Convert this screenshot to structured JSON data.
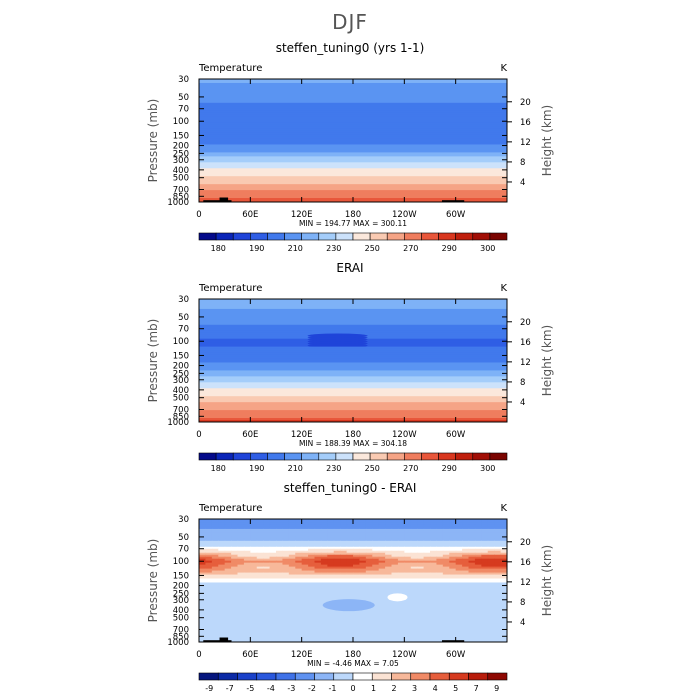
{
  "figure_title": "DJF",
  "chart_data": [
    {
      "type": "heatmap",
      "title": "steffen_tuning0 (yrs 1-1)",
      "left_label": "Temperature",
      "right_label": "K",
      "ylabel": "Pressure (mb)",
      "ylabel_right": "Height (km)",
      "x_ticks": [
        "0",
        "60E",
        "120E",
        "180",
        "120W",
        "60W"
      ],
      "x_tick_lon": [
        0,
        60,
        120,
        180,
        240,
        300
      ],
      "x_range": [
        0,
        360
      ],
      "y_ticks": [
        "30",
        "50",
        "70",
        "100",
        "150",
        "200",
        "250",
        "300",
        "400",
        "500",
        "700",
        "850",
        "1000"
      ],
      "y_tick_p": [
        30,
        50,
        70,
        100,
        150,
        200,
        250,
        300,
        400,
        500,
        700,
        850,
        1000
      ],
      "p_range": [
        1000,
        30
      ],
      "height_ticks": [
        "20",
        "16",
        "12",
        "8",
        "4"
      ],
      "height_km": [
        20,
        16,
        12,
        8,
        4
      ],
      "stats_text": "MIN = 194.77   MAX = 300.11",
      "cbar_labels": [
        "180",
        "190",
        "210",
        "230",
        "250",
        "270",
        "290",
        "300"
      ],
      "cbar_colors": [
        "#040a8a",
        "#0a25b8",
        "#1f44d9",
        "#2f5ee5",
        "#4179ec",
        "#5a94f2",
        "#7eb2f7",
        "#a4cdfa",
        "#cce2fb",
        "#fbe8dc",
        "#f9cab2",
        "#f5a486",
        "#ef7d5e",
        "#e8563a",
        "#d9371f",
        "#c01f0d",
        "#a10e05",
        "#7a0400"
      ],
      "field": "abs",
      "terrain": true,
      "profile_p": [
        30,
        50,
        70,
        100,
        150,
        200,
        250,
        300,
        400,
        500,
        700,
        850,
        1000
      ],
      "profile_val": [
        222,
        213,
        206,
        201,
        203,
        211,
        223,
        236,
        252,
        262,
        278,
        287,
        296
      ]
    },
    {
      "type": "heatmap",
      "title": "ERAI",
      "left_label": "Temperature",
      "right_label": "K",
      "ylabel": "Pressure (mb)",
      "ylabel_right": "Height (km)",
      "x_ticks": [
        "0",
        "60E",
        "120E",
        "180",
        "120W",
        "60W"
      ],
      "x_tick_lon": [
        0,
        60,
        120,
        180,
        240,
        300
      ],
      "x_range": [
        0,
        360
      ],
      "y_ticks": [
        "30",
        "50",
        "70",
        "100",
        "150",
        "200",
        "250",
        "300",
        "400",
        "500",
        "700",
        "850",
        "1000"
      ],
      "y_tick_p": [
        30,
        50,
        70,
        100,
        150,
        200,
        250,
        300,
        400,
        500,
        700,
        850,
        1000
      ],
      "p_range": [
        1000,
        30
      ],
      "height_ticks": [
        "20",
        "16",
        "12",
        "8",
        "4"
      ],
      "height_km": [
        20,
        16,
        12,
        8,
        4
      ],
      "stats_text": "MIN = 188.39   MAX = 304.18",
      "cbar_labels": [
        "180",
        "190",
        "210",
        "230",
        "250",
        "270",
        "290",
        "300"
      ],
      "cbar_colors": [
        "#040a8a",
        "#0a25b8",
        "#1f44d9",
        "#2f5ee5",
        "#4179ec",
        "#5a94f2",
        "#7eb2f7",
        "#a4cdfa",
        "#cce2fb",
        "#fbe8dc",
        "#f9cab2",
        "#f5a486",
        "#ef7d5e",
        "#e8563a",
        "#d9371f",
        "#c01f0d",
        "#a10e05",
        "#7a0400"
      ],
      "field": "abs",
      "terrain": false,
      "profile_p": [
        30,
        50,
        70,
        100,
        150,
        200,
        250,
        300,
        400,
        500,
        700,
        850,
        1000
      ],
      "profile_val": [
        224,
        216,
        207,
        198,
        203,
        212,
        224,
        237,
        253,
        263,
        279,
        288,
        298
      ]
    },
    {
      "type": "heatmap",
      "title": "steffen_tuning0 - ERAI",
      "left_label": "Temperature",
      "right_label": "K",
      "ylabel": "Pressure (mb)",
      "ylabel_right": "Height (km)",
      "x_ticks": [
        "0",
        "60E",
        "120E",
        "180",
        "120W",
        "60W"
      ],
      "x_tick_lon": [
        0,
        60,
        120,
        180,
        240,
        300
      ],
      "x_range": [
        0,
        360
      ],
      "y_ticks": [
        "30",
        "50",
        "70",
        "100",
        "150",
        "200",
        "250",
        "300",
        "400",
        "500",
        "700",
        "850",
        "1000"
      ],
      "y_tick_p": [
        30,
        50,
        70,
        100,
        150,
        200,
        250,
        300,
        400,
        500,
        700,
        850,
        1000
      ],
      "p_range": [
        1000,
        30
      ],
      "height_ticks": [
        "20",
        "16",
        "12",
        "8",
        "4"
      ],
      "height_km": [
        20,
        16,
        12,
        8,
        4
      ],
      "stats_text": "MIN = -4.46   MAX = 7.05",
      "cbar_labels": [
        "-9",
        "-7",
        "-5",
        "-4",
        "-3",
        "-2",
        "-1",
        "0",
        "1",
        "2",
        "3",
        "4",
        "5",
        "7",
        "9"
      ],
      "cbar_colors": [
        "#06167e",
        "#0b2aa6",
        "#1a41c9",
        "#2a58dd",
        "#3f72e8",
        "#5f92f1",
        "#8cb5f6",
        "#bcd8fb",
        "#ffffff",
        "#fbe3d4",
        "#f7b89a",
        "#f08a66",
        "#e65e3c",
        "#d63a1f",
        "#b81c0b",
        "#8e0802"
      ],
      "field": "diff",
      "terrain": true,
      "profile_p": [
        30,
        50,
        70,
        100,
        150,
        200,
        250,
        300,
        400,
        500,
        700,
        850,
        1000
      ],
      "profile_val": [
        -2.2,
        -1.8,
        0.5,
        4.5,
        2.0,
        -0.6,
        -0.7,
        -0.6,
        -0.8,
        -0.6,
        -0.5,
        -0.3,
        -0.5
      ]
    }
  ]
}
